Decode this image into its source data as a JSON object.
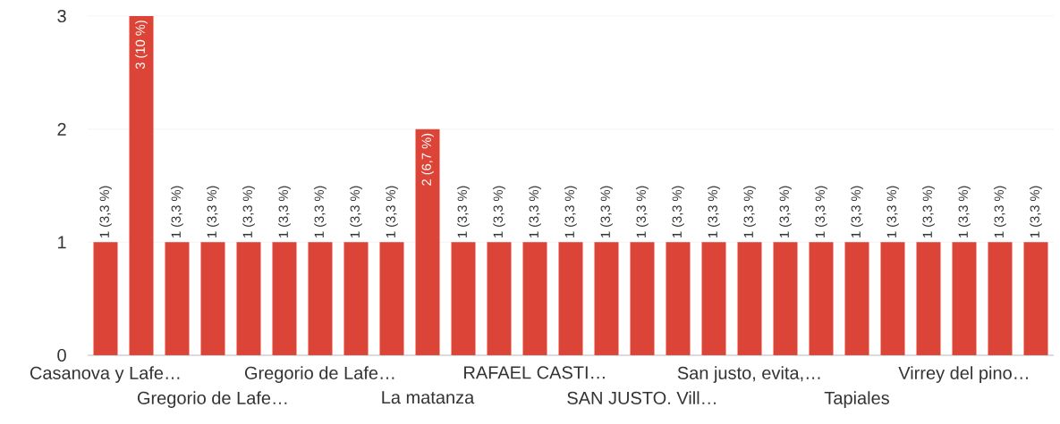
{
  "chart_data": {
    "type": "bar",
    "categories": [
      "Casanova y Lafe…",
      null,
      null,
      "Gregorio de Lafe…",
      null,
      null,
      "Gregorio de Lafe…",
      null,
      null,
      "La matanza",
      null,
      null,
      "RAFAEL CASTI…",
      null,
      null,
      "SAN JUSTO. Vill…",
      null,
      null,
      "San justo, evita,…",
      null,
      null,
      "Tapiales",
      null,
      null,
      "Virrey del pino…",
      null,
      null
    ],
    "values": [
      1,
      3,
      1,
      1,
      1,
      1,
      1,
      1,
      1,
      2,
      1,
      1,
      1,
      1,
      1,
      1,
      1,
      1,
      1,
      1,
      1,
      1,
      1,
      1,
      1,
      1,
      1
    ],
    "value_labels": [
      "1 (3,3 %)",
      "3 (10 %)",
      "1 (3,3 %)",
      "1 (3,3 %)",
      "1 (3,3 %)",
      "1 (3,3 %)",
      "1 (3,3 %)",
      "1 (3,3 %)",
      "1 (3,3 %)",
      "2 (6,7 %)",
      "1 (3,3 %)",
      "1 (3,3 %)",
      "1 (3,3 %)",
      "1 (3,3 %)",
      "1 (3,3 %)",
      "1 (3,3 %)",
      "1 (3,3 %)",
      "1 (3,3 %)",
      "1 (3,3 %)",
      "1 (3,3 %)",
      "1 (3,3 %)",
      "1 (3,3 %)",
      "1 (3,3 %)",
      "1 (3,3 %)",
      "1 (3,3 %)",
      "1 (3,3 %)",
      "1 (3,3 %)"
    ],
    "color": "#dc4437",
    "ylim": [
      0,
      3
    ],
    "yticks": [
      0,
      1,
      2,
      3
    ],
    "grid": "y"
  }
}
